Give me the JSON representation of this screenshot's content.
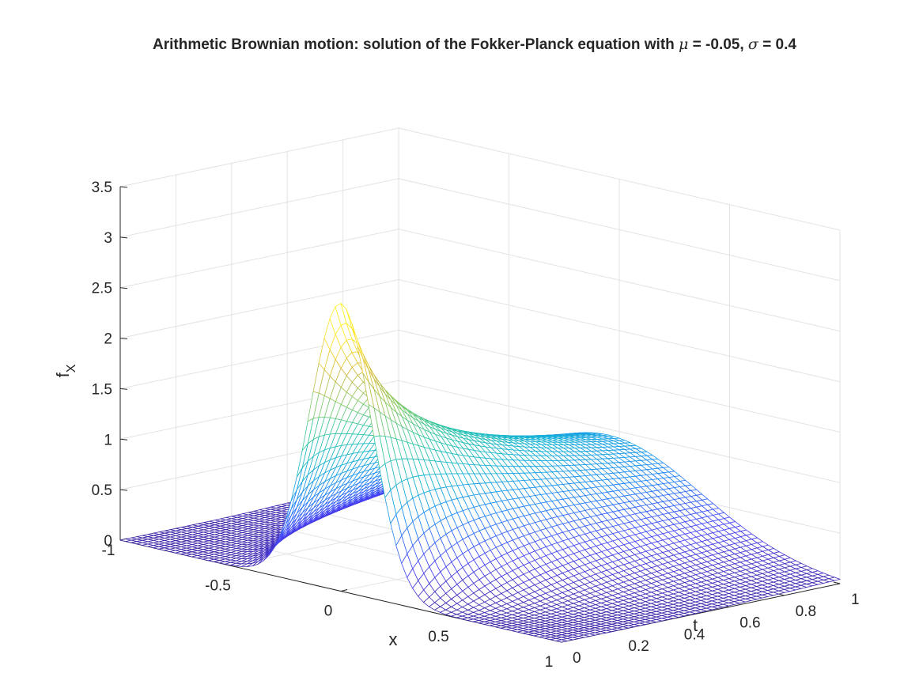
{
  "chart_data": {
    "type": "surface-mesh",
    "title": {
      "prefix": "Arithmetic Brownian motion: solution of the Fokker-Planck equation with ",
      "mu_symbol": "μ",
      "mu_text": " = -0.05, ",
      "sigma_symbol": "σ",
      "sigma_text": " = 0.4"
    },
    "mu": -0.05,
    "sigma": 0.4,
    "xlabel": "x",
    "ylabel": "t",
    "zlabel_base": "f",
    "zlabel_sub": "X",
    "xlim": [
      -1,
      1
    ],
    "ylim": [
      0,
      1
    ],
    "zlim": [
      0,
      3.5
    ],
    "x_ticks": [
      "-1",
      "-0.5",
      "0",
      "0.5",
      "1"
    ],
    "t_ticks": [
      "0",
      "0.2",
      "0.4",
      "0.6",
      "0.8",
      "1"
    ],
    "z_ticks": [
      "0",
      "0.5",
      "1",
      "1.5",
      "2",
      "2.5",
      "3",
      "3.5"
    ],
    "grid": true,
    "colormap": [
      "#3e26a8",
      "#4743f8",
      "#1f82fb",
      "#12b0d6",
      "#2dc5a7",
      "#82cb64",
      "#d6b93c",
      "#fee42a",
      "#f9fb15"
    ],
    "initial_condition": {
      "type": "gaussian",
      "mean": 0,
      "sd": 0.14
    },
    "mesh": {
      "x_points": 81,
      "t_points": 51
    }
  }
}
